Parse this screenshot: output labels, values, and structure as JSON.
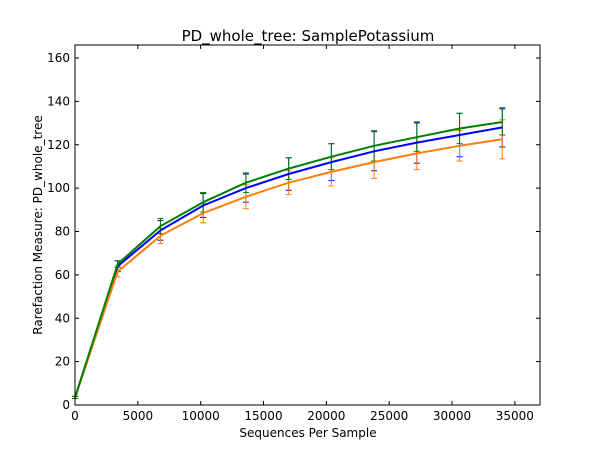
{
  "chart_data": {
    "type": "line",
    "title": "PD_whole_tree: SamplePotassium",
    "xlabel": "Sequences Per Sample",
    "ylabel": "Rarefaction Measure: PD_whole_tree",
    "xlim": [
      0,
      37000
    ],
    "ylim": [
      0,
      166
    ],
    "xticks": [
      0,
      5000,
      10000,
      15000,
      20000,
      25000,
      30000,
      35000
    ],
    "yticks": [
      0,
      20,
      40,
      60,
      80,
      100,
      120,
      140,
      160
    ],
    "grid": false,
    "legend": "none",
    "x": [
      10,
      3400,
      6800,
      10200,
      13600,
      17000,
      20400,
      23800,
      27200,
      30600,
      34000
    ],
    "series": [
      {
        "color": "#0000ff",
        "values": [
          3.5,
          64,
          80.5,
          92,
          100,
          106.5,
          112,
          117,
          121,
          124.5,
          128
        ],
        "err": [
          0.5,
          2.5,
          4.5,
          5.5,
          6.5,
          7.5,
          8.5,
          9,
          9.5,
          10,
          9
        ]
      },
      {
        "color": "#ff7f0e",
        "values": [
          3.5,
          61.5,
          78,
          88.5,
          96,
          102.5,
          107.5,
          112,
          116,
          119.5,
          122.5
        ],
        "err": [
          0.5,
          2.5,
          3.5,
          4.5,
          5.5,
          5.5,
          6.5,
          7.5,
          7.5,
          7,
          9
        ]
      },
      {
        "color": "#008000",
        "values": [
          3.5,
          65,
          82.5,
          93.5,
          102.5,
          109,
          114.5,
          119.5,
          123.5,
          127.5,
          130.5
        ],
        "err": [
          0.5,
          1.5,
          3.5,
          4.5,
          4.5,
          5,
          6,
          7,
          6.5,
          7,
          6
        ]
      }
    ]
  }
}
